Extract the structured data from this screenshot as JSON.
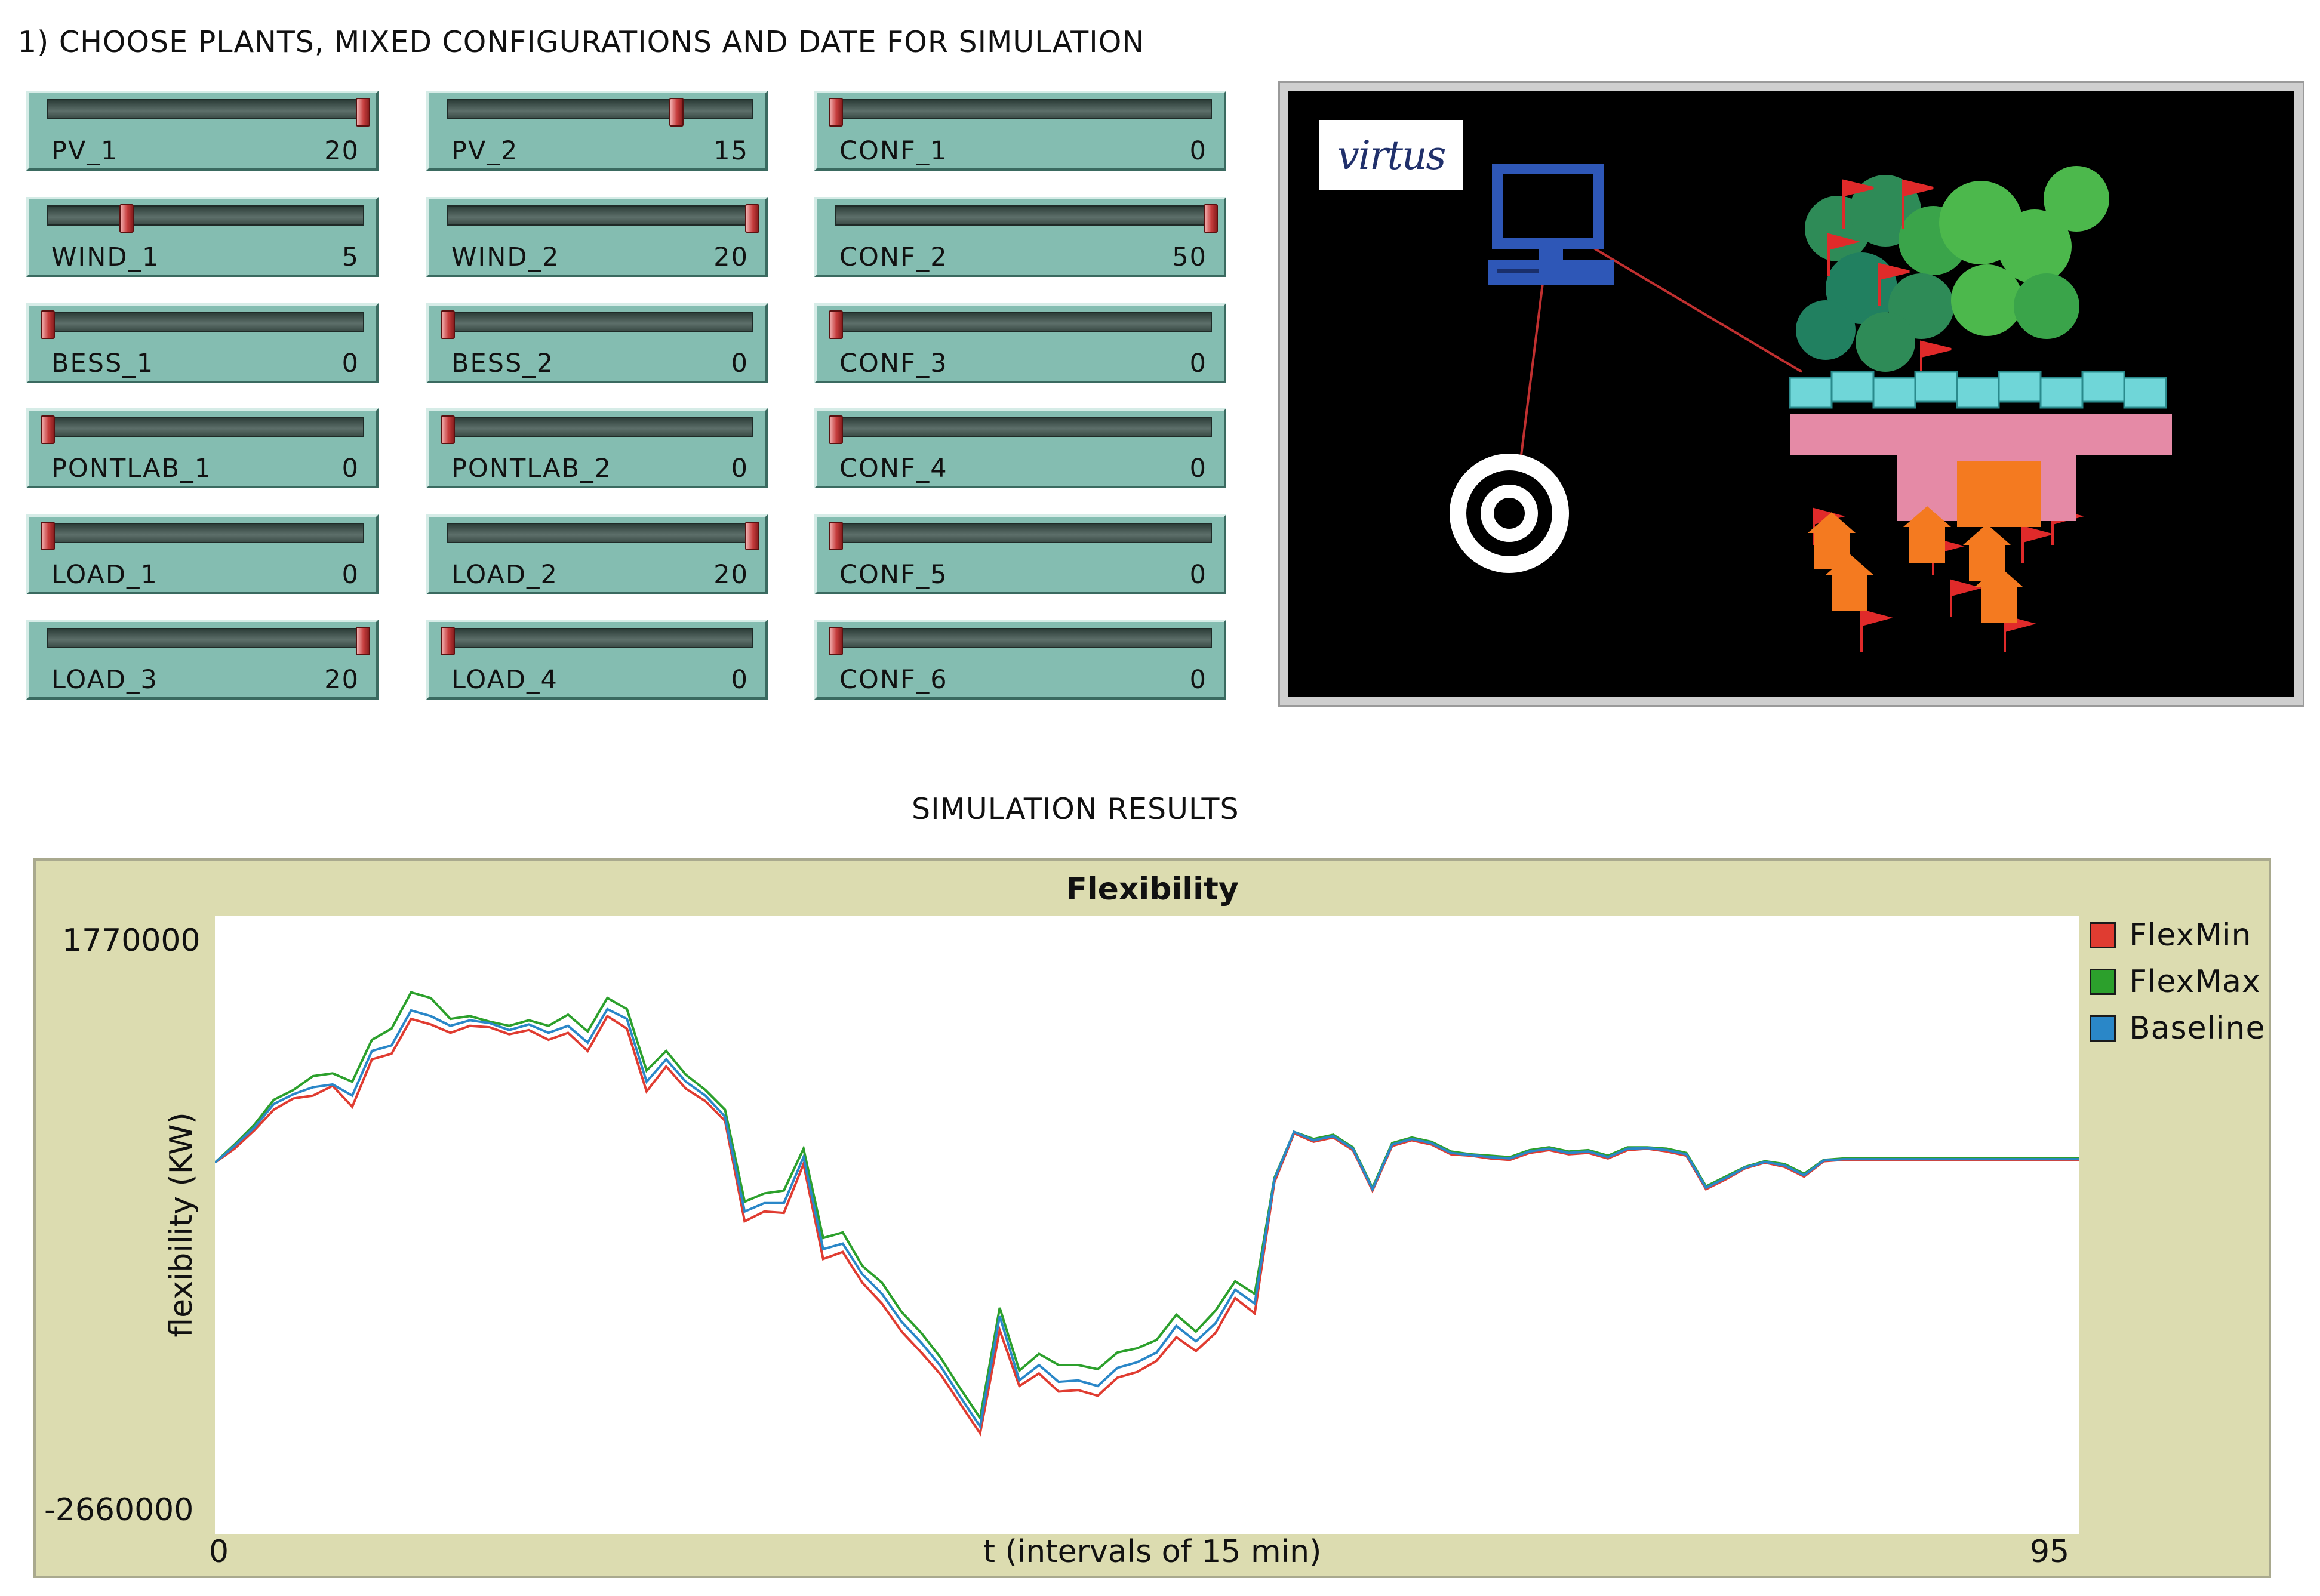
{
  "header": {
    "title": "1) CHOOSE PLANTS, MIXED CONFIGURATIONS AND DATE FOR SIMULATION"
  },
  "sliders": [
    {
      "name": "PV_1",
      "value": "20",
      "fraction": 1.0
    },
    {
      "name": "PV_2",
      "value": "15",
      "fraction": 0.75
    },
    {
      "name": "CONF_1",
      "value": "0",
      "fraction": 0.0
    },
    {
      "name": "WIND_1",
      "value": "5",
      "fraction": 0.25
    },
    {
      "name": "WIND_2",
      "value": "20",
      "fraction": 1.0
    },
    {
      "name": "CONF_2",
      "value": "50",
      "fraction": 1.0
    },
    {
      "name": "BESS_1",
      "value": "0",
      "fraction": 0.0
    },
    {
      "name": "BESS_2",
      "value": "0",
      "fraction": 0.0
    },
    {
      "name": "CONF_3",
      "value": "0",
      "fraction": 0.0
    },
    {
      "name": "PONTLAB_1",
      "value": "0",
      "fraction": 0.0
    },
    {
      "name": "PONTLAB_2",
      "value": "0",
      "fraction": 0.0
    },
    {
      "name": "CONF_4",
      "value": "0",
      "fraction": 0.0
    },
    {
      "name": "LOAD_1",
      "value": "0",
      "fraction": 0.0
    },
    {
      "name": "LOAD_2",
      "value": "20",
      "fraction": 1.0
    },
    {
      "name": "CONF_5",
      "value": "0",
      "fraction": 0.0
    },
    {
      "name": "LOAD_3",
      "value": "20",
      "fraction": 1.0
    },
    {
      "name": "LOAD_4",
      "value": "0",
      "fraction": 0.0
    },
    {
      "name": "CONF_6",
      "value": "0",
      "fraction": 0.0
    }
  ],
  "world": {
    "logo_text": "virtus"
  },
  "results": {
    "title": "SIMULATION RESULTS"
  },
  "colors": {
    "slider": "#84bdb1",
    "plot_bg": "#dcdcb0",
    "flexmin": "#e03c31",
    "flexmax": "#2ca02c",
    "baseline": "#2a87c8"
  },
  "chart_data": {
    "type": "line",
    "title": "Flexibility",
    "xlabel": "t (intervals of 15 min)",
    "ylabel": "flexibility (KW)",
    "xlim": [
      0,
      95
    ],
    "ylim": [
      -2660000,
      1770000
    ],
    "x_tick_labels": [
      "0",
      "95"
    ],
    "y_tick_labels": [
      "1770000",
      "-2660000"
    ],
    "legend": "right",
    "series": [
      {
        "name": "FlexMin",
        "color": "#e03c31",
        "values": [
          0,
          100000,
          230000,
          380000,
          460000,
          480000,
          550000,
          400000,
          740000,
          780000,
          1030000,
          990000,
          930000,
          980000,
          970000,
          920000,
          950000,
          880000,
          930000,
          800000,
          1050000,
          960000,
          510000,
          690000,
          530000,
          440000,
          300000,
          -420000,
          -350000,
          -360000,
          -10000,
          -690000,
          -640000,
          -860000,
          -1010000,
          -1210000,
          -1360000,
          -1520000,
          -1730000,
          -1940000,
          -1200000,
          -1600000,
          -1510000,
          -1640000,
          -1630000,
          -1670000,
          -1540000,
          -1500000,
          -1420000,
          -1250000,
          -1350000,
          -1220000,
          -970000,
          -1080000,
          -140000,
          210000,
          150000,
          180000,
          90000,
          -200000,
          120000,
          160000,
          130000,
          60000,
          50000,
          30000,
          20000,
          70000,
          90000,
          60000,
          70000,
          30000,
          90000,
          100000,
          80000,
          50000,
          -190000,
          -120000,
          -40000,
          0,
          -30000,
          -100000,
          10000,
          20000,
          20000,
          20000,
          20000,
          20000,
          20000,
          20000,
          20000,
          20000,
          20000,
          20000,
          20000,
          20000
        ]
      },
      {
        "name": "FlexMax",
        "color": "#2ca02c",
        "values": [
          0,
          130000,
          270000,
          450000,
          520000,
          620000,
          640000,
          580000,
          880000,
          960000,
          1220000,
          1180000,
          1030000,
          1050000,
          1010000,
          980000,
          1020000,
          980000,
          1060000,
          940000,
          1180000,
          1100000,
          660000,
          800000,
          630000,
          520000,
          380000,
          -280000,
          -220000,
          -200000,
          100000,
          -540000,
          -500000,
          -740000,
          -860000,
          -1070000,
          -1220000,
          -1400000,
          -1620000,
          -1830000,
          -1040000,
          -1490000,
          -1370000,
          -1450000,
          -1450000,
          -1480000,
          -1360000,
          -1330000,
          -1270000,
          -1090000,
          -1210000,
          -1060000,
          -850000,
          -940000,
          -110000,
          220000,
          170000,
          200000,
          110000,
          -180000,
          140000,
          180000,
          150000,
          80000,
          60000,
          50000,
          40000,
          90000,
          110000,
          80000,
          90000,
          50000,
          110000,
          110000,
          100000,
          70000,
          -170000,
          -100000,
          -30000,
          10000,
          -10000,
          -80000,
          20000,
          30000,
          30000,
          30000,
          30000,
          30000,
          30000,
          30000,
          30000,
          30000,
          30000,
          30000,
          30000,
          30000
        ]
      },
      {
        "name": "Baseline",
        "color": "#2a87c8",
        "values": [
          0,
          120000,
          250000,
          420000,
          490000,
          540000,
          560000,
          480000,
          800000,
          840000,
          1090000,
          1050000,
          980000,
          1020000,
          1000000,
          950000,
          990000,
          930000,
          980000,
          860000,
          1100000,
          1030000,
          580000,
          740000,
          580000,
          480000,
          330000,
          -350000,
          -290000,
          -290000,
          40000,
          -620000,
          -580000,
          -800000,
          -940000,
          -1140000,
          -1290000,
          -1460000,
          -1680000,
          -1890000,
          -1100000,
          -1560000,
          -1450000,
          -1570000,
          -1560000,
          -1600000,
          -1470000,
          -1430000,
          -1360000,
          -1170000,
          -1280000,
          -1150000,
          -910000,
          -1010000,
          -120000,
          220000,
          160000,
          190000,
          100000,
          -190000,
          130000,
          170000,
          140000,
          70000,
          55000,
          40000,
          30000,
          80000,
          100000,
          70000,
          80000,
          40000,
          100000,
          105000,
          90000,
          60000,
          -180000,
          -110000,
          -35000,
          5000,
          -20000,
          -90000,
          15000,
          25000,
          25000,
          25000,
          25000,
          25000,
          25000,
          25000,
          25000,
          25000,
          25000,
          25000,
          25000,
          25000
        ]
      }
    ]
  }
}
